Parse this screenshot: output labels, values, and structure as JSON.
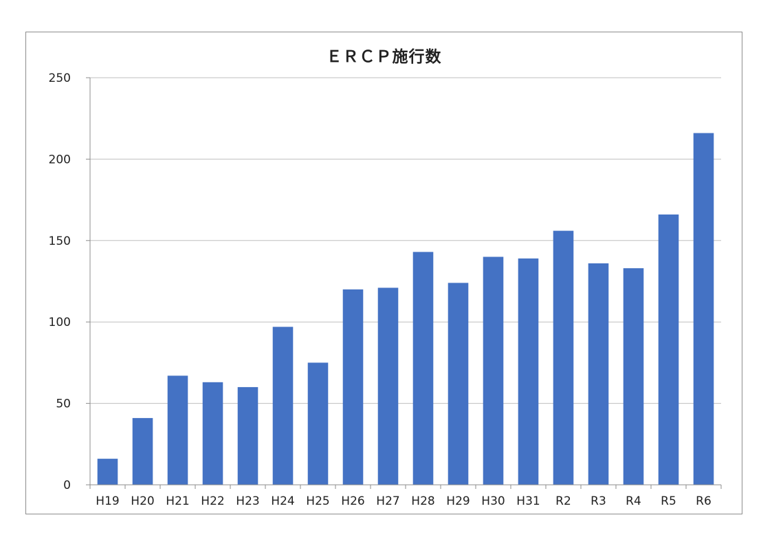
{
  "chart_data": {
    "type": "bar",
    "title": "ＥＲＣＰ施行数",
    "xlabel": "",
    "ylabel": "",
    "categories": [
      "H19",
      "H20",
      "H21",
      "H22",
      "H23",
      "H24",
      "H25",
      "H26",
      "H27",
      "H28",
      "H29",
      "H30",
      "H31",
      "R2",
      "R3",
      "R4",
      "R5",
      "R6"
    ],
    "values": [
      16,
      41,
      67,
      63,
      60,
      97,
      75,
      120,
      121,
      143,
      124,
      140,
      139,
      156,
      136,
      133,
      166,
      216
    ],
    "ylim": [
      0,
      250
    ],
    "yticks": [
      0,
      50,
      100,
      150,
      200,
      250
    ],
    "grid": true,
    "legend": "none",
    "colors": {
      "bar": "#4472C4",
      "grid": "#bfbfbf",
      "axis": "#8c8c8c"
    }
  }
}
